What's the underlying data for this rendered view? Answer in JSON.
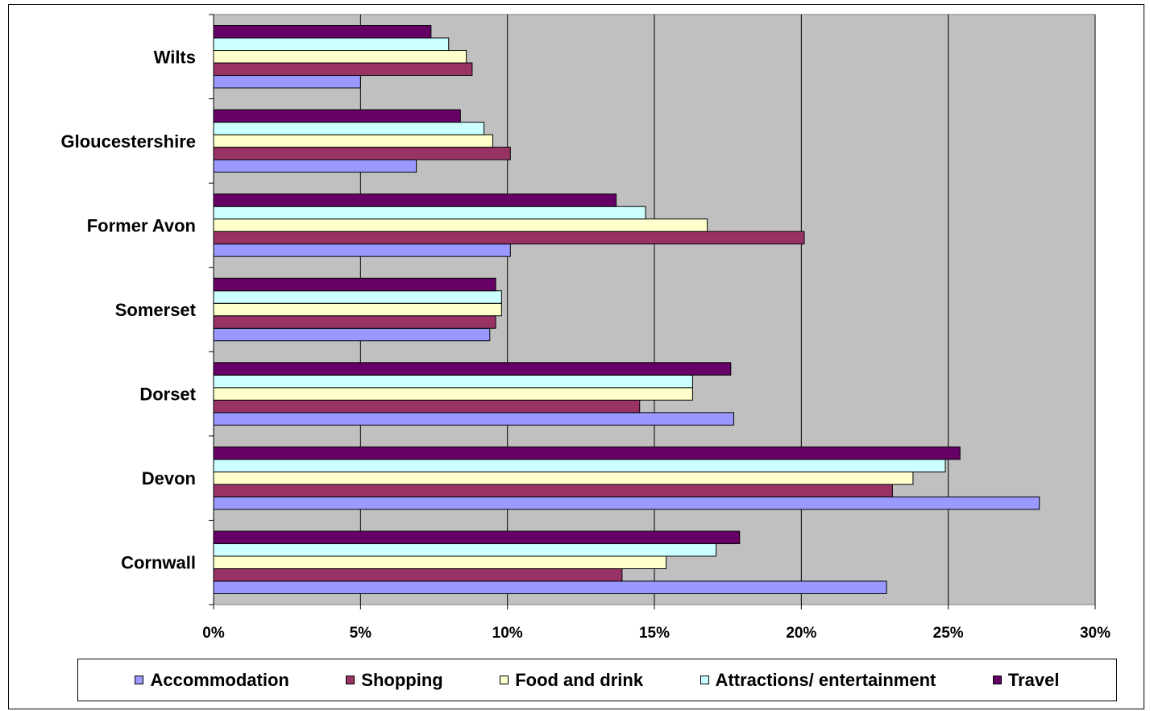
{
  "chart_data": {
    "type": "bar",
    "orientation": "horizontal",
    "title": "",
    "xlabel": "",
    "ylabel": "",
    "categories": [
      "Cornwall",
      "Devon",
      "Dorset",
      "Somerset",
      "Former Avon",
      "Gloucestershire",
      "Wilts"
    ],
    "series": [
      {
        "name": "Accommodation",
        "color": "#9999ff",
        "values": [
          22.9,
          28.1,
          17.7,
          9.4,
          10.1,
          6.9,
          5.0
        ]
      },
      {
        "name": "Shopping",
        "color": "#993366",
        "values": [
          13.9,
          23.1,
          14.5,
          9.6,
          20.1,
          10.1,
          8.8
        ]
      },
      {
        "name": "Food and drink",
        "color": "#ffffcc",
        "values": [
          15.4,
          23.8,
          16.3,
          9.8,
          16.8,
          9.5,
          8.6
        ]
      },
      {
        "name": "Attractions/ entertainment",
        "color": "#ccffff",
        "values": [
          17.1,
          24.9,
          16.3,
          9.8,
          14.7,
          9.2,
          8.0
        ]
      },
      {
        "name": "Travel",
        "color": "#660066",
        "values": [
          17.9,
          25.4,
          17.6,
          9.6,
          13.7,
          8.4,
          7.4
        ]
      }
    ],
    "xlim": [
      0,
      30
    ],
    "xticks": [
      "0%",
      "5%",
      "10%",
      "15%",
      "20%",
      "25%",
      "30%"
    ],
    "grid": true,
    "plot_background": "#c0c0c0",
    "legend_position": "bottom"
  }
}
